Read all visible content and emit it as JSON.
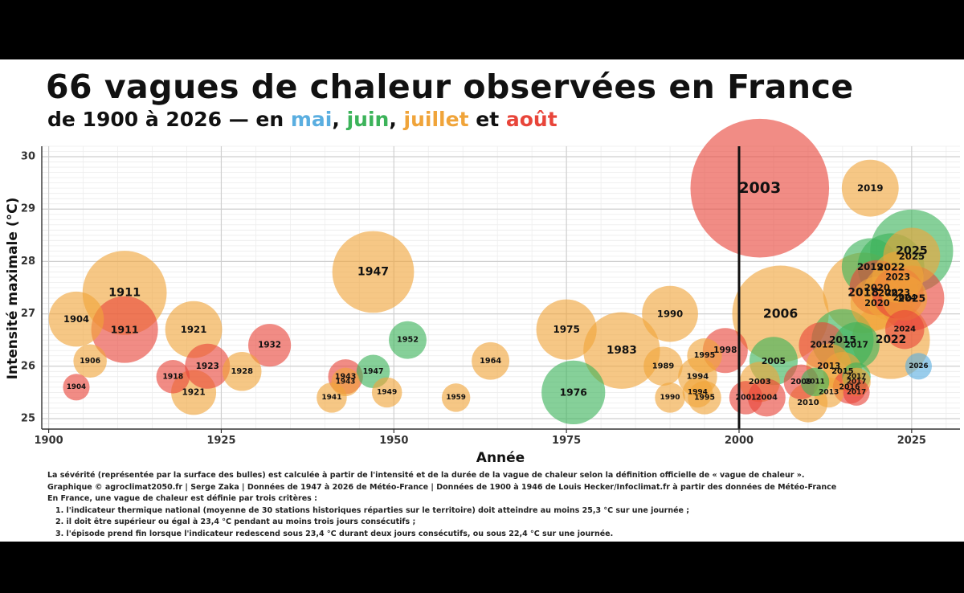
{
  "title": "66 vagues de chaleur observées en France",
  "subtitle": {
    "prefix": "de 1900 à 2026 — en",
    "mai": "mai",
    "sep1": ",",
    "juin": "juin",
    "sep2": ",",
    "juillet": "juillet",
    "et": "et",
    "aout": "août"
  },
  "colors": {
    "mai": "#5aaee0",
    "juin": "#3cb35a",
    "juillet": "#f0a43a",
    "aout": "#e8453a",
    "vline": "#111111"
  },
  "chart_data": {
    "type": "scatter",
    "xlabel": "Année",
    "ylabel": "Intensité maximale (°C)",
    "xlim": [
      1899,
      2032
    ],
    "ylim": [
      24.8,
      30.2
    ],
    "xticks": [
      1900,
      1925,
      1950,
      1975,
      2000,
      2025
    ],
    "yticks": [
      25,
      26,
      27,
      28,
      29,
      30
    ],
    "grid": true,
    "reference_line_x": 2000,
    "size_encoding": "sévérité (surface des bulles)",
    "points": [
      {
        "label": "1904",
        "x": 1904,
        "y": 26.9,
        "month": "juillet",
        "severity": 1.5
      },
      {
        "label": "1904",
        "x": 1904,
        "y": 25.6,
        "month": "aout",
        "severity": 0.35
      },
      {
        "label": "1906",
        "x": 1906,
        "y": 26.1,
        "month": "juillet",
        "severity": 0.55
      },
      {
        "label": "1911",
        "x": 1911,
        "y": 27.4,
        "month": "juillet",
        "severity": 3.5
      },
      {
        "label": "1911",
        "x": 1911,
        "y": 26.7,
        "month": "aout",
        "severity": 2.2
      },
      {
        "label": "1918",
        "x": 1918,
        "y": 25.8,
        "month": "aout",
        "severity": 0.55
      },
      {
        "label": "1921",
        "x": 1921,
        "y": 26.7,
        "month": "juillet",
        "severity": 1.6
      },
      {
        "label": "1921",
        "x": 1921,
        "y": 25.5,
        "month": "juillet",
        "severity": 1.0
      },
      {
        "label": "1923",
        "x": 1923,
        "y": 26.0,
        "month": "aout",
        "severity": 1.0
      },
      {
        "label": "1928",
        "x": 1928,
        "y": 25.9,
        "month": "juillet",
        "severity": 0.75
      },
      {
        "label": "1932",
        "x": 1932,
        "y": 26.4,
        "month": "aout",
        "severity": 0.9
      },
      {
        "label": "1941",
        "x": 1941,
        "y": 25.4,
        "month": "juillet",
        "severity": 0.45
      },
      {
        "label": "1943",
        "x": 1943,
        "y": 25.8,
        "month": "aout",
        "severity": 0.6
      },
      {
        "label": "1943",
        "x": 1943,
        "y": 25.7,
        "month": "juillet",
        "severity": 0.4
      },
      {
        "label": "1947",
        "x": 1947,
        "y": 27.8,
        "month": "juillet",
        "severity": 3.3
      },
      {
        "label": "1947",
        "x": 1947,
        "y": 25.9,
        "month": "juin",
        "severity": 0.55
      },
      {
        "label": "1949",
        "x": 1949,
        "y": 25.5,
        "month": "juillet",
        "severity": 0.45
      },
      {
        "label": "1952",
        "x": 1952,
        "y": 26.5,
        "month": "juin",
        "severity": 0.7
      },
      {
        "label": "1959",
        "x": 1959,
        "y": 25.4,
        "month": "juillet",
        "severity": 0.4
      },
      {
        "label": "1964",
        "x": 1964,
        "y": 26.1,
        "month": "juillet",
        "severity": 0.7
      },
      {
        "label": "1975",
        "x": 1975,
        "y": 26.7,
        "month": "juillet",
        "severity": 1.8
      },
      {
        "label": "1976",
        "x": 1976,
        "y": 25.5,
        "month": "juin",
        "severity": 2.0
      },
      {
        "label": "1983",
        "x": 1983,
        "y": 26.3,
        "month": "juillet",
        "severity": 2.9
      },
      {
        "label": "1989",
        "x": 1989,
        "y": 26.0,
        "month": "juillet",
        "severity": 0.75
      },
      {
        "label": "1990",
        "x": 1990,
        "y": 27.0,
        "month": "juillet",
        "severity": 1.55
      },
      {
        "label": "1990",
        "x": 1990,
        "y": 25.4,
        "month": "juillet",
        "severity": 0.45
      },
      {
        "label": "1994",
        "x": 1994,
        "y": 25.8,
        "month": "juillet",
        "severity": 0.75
      },
      {
        "label": "1994",
        "x": 1994,
        "y": 25.5,
        "month": "juillet",
        "severity": 0.45
      },
      {
        "label": "1995",
        "x": 1995,
        "y": 26.2,
        "month": "juillet",
        "severity": 0.6
      },
      {
        "label": "1995",
        "x": 1995,
        "y": 25.4,
        "month": "juillet",
        "severity": 0.55
      },
      {
        "label": "1998",
        "x": 1998,
        "y": 26.3,
        "month": "aout",
        "severity": 1.0
      },
      {
        "label": "2001",
        "x": 2001,
        "y": 25.4,
        "month": "aout",
        "severity": 0.55
      },
      {
        "label": "2003",
        "x": 2003,
        "y": 29.4,
        "month": "aout",
        "severity": 9.5
      },
      {
        "label": "2003",
        "x": 2003,
        "y": 25.7,
        "month": "juillet",
        "severity": 0.8
      },
      {
        "label": "2004",
        "x": 2004,
        "y": 25.4,
        "month": "aout",
        "severity": 0.7
      },
      {
        "label": "2005",
        "x": 2005,
        "y": 26.1,
        "month": "juin",
        "severity": 1.15
      },
      {
        "label": "2006",
        "x": 2006,
        "y": 27.0,
        "month": "juillet",
        "severity": 4.6
      },
      {
        "label": "2009",
        "x": 2009,
        "y": 25.7,
        "month": "aout",
        "severity": 0.6
      },
      {
        "label": "2010",
        "x": 2010,
        "y": 25.3,
        "month": "juillet",
        "severity": 0.75
      },
      {
        "label": "2011",
        "x": 2011,
        "y": 25.7,
        "month": "juin",
        "severity": 0.4
      },
      {
        "label": "2012",
        "x": 2012,
        "y": 26.4,
        "month": "aout",
        "severity": 1.05
      },
      {
        "label": "2013",
        "x": 2013,
        "y": 26.0,
        "month": "juillet",
        "severity": 1.0
      },
      {
        "label": "2013",
        "x": 2013,
        "y": 25.5,
        "month": "juillet",
        "severity": 0.45
      },
      {
        "label": "2015",
        "x": 2015,
        "y": 26.5,
        "month": "juin",
        "severity": 1.9
      },
      {
        "label": "2015",
        "x": 2015,
        "y": 25.9,
        "month": "juillet",
        "severity": 0.75
      },
      {
        "label": "2016",
        "x": 2016,
        "y": 25.6,
        "month": "aout",
        "severity": 0.55
      },
      {
        "label": "2017",
        "x": 2017,
        "y": 26.4,
        "month": "juin",
        "severity": 1.05
      },
      {
        "label": "2017",
        "x": 2017,
        "y": 25.8,
        "month": "juin",
        "severity": 0.4
      },
      {
        "label": "2017",
        "x": 2017,
        "y": 25.7,
        "month": "juillet",
        "severity": 0.4
      },
      {
        "label": "2017",
        "x": 2017,
        "y": 25.5,
        "month": "aout",
        "severity": 0.35
      },
      {
        "label": "2018",
        "x": 2018,
        "y": 27.4,
        "month": "juillet",
        "severity": 3.2
      },
      {
        "label": "2019",
        "x": 2019,
        "y": 29.4,
        "month": "juillet",
        "severity": 1.6
      },
      {
        "label": "2019",
        "x": 2019,
        "y": 27.9,
        "month": "juin",
        "severity": 1.6
      },
      {
        "label": "2020",
        "x": 2020,
        "y": 27.5,
        "month": "aout",
        "severity": 1.5
      },
      {
        "label": "2020",
        "x": 2020,
        "y": 27.2,
        "month": "juillet",
        "severity": 1.4
      },
      {
        "label": "2022",
        "x": 2022,
        "y": 27.9,
        "month": "juin",
        "severity": 2.2
      },
      {
        "label": "2022",
        "x": 2022,
        "y": 27.4,
        "month": "juillet",
        "severity": 1.5
      },
      {
        "label": "2022",
        "x": 2022,
        "y": 26.5,
        "month": "juillet",
        "severity": 3.0
      },
      {
        "label": "2023",
        "x": 2023,
        "y": 27.4,
        "month": "aout",
        "severity": 1.3
      },
      {
        "label": "2023",
        "x": 2023,
        "y": 27.7,
        "month": "juillet",
        "severity": 1.3
      },
      {
        "label": "2024",
        "x": 2024,
        "y": 26.7,
        "month": "aout",
        "severity": 0.75
      },
      {
        "label": "2024",
        "x": 2024,
        "y": 27.3,
        "month": "juillet",
        "severity": 1.0
      },
      {
        "label": "2025",
        "x": 2025,
        "y": 28.2,
        "month": "juin",
        "severity": 3.4
      },
      {
        "label": "2025",
        "x": 2025,
        "y": 27.3,
        "month": "aout",
        "severity": 2.1
      },
      {
        "label": "2025",
        "x": 2025,
        "y": 28.1,
        "month": "juillet",
        "severity": 1.6
      },
      {
        "label": "2026",
        "x": 2026,
        "y": 26.0,
        "month": "mai",
        "severity": 0.35
      }
    ],
    "visible_labels": [
      "1904",
      "1904",
      "1906",
      "1911",
      "1911",
      "1918",
      "1921",
      "1921",
      "1923",
      "1928",
      "1932",
      "1941",
      "1943",
      "1943",
      "1947",
      "1947",
      "1949",
      "1952",
      "1959",
      "1964",
      "1975",
      "1976",
      "1983",
      "1989",
      "1990",
      "1990",
      "1994",
      "1994",
      "1995",
      "1995",
      "1998",
      "2001",
      "2003",
      "2003",
      "2004",
      "2005",
      "2006",
      "2009",
      "2010",
      "2011",
      "2012",
      "2013",
      "2013",
      "2015",
      "2015",
      "2016",
      "2017",
      "2017",
      "2017",
      "2017",
      "2018",
      "2019",
      "2019",
      "2020",
      "2020",
      "2022",
      "2022",
      "2022",
      "2023",
      "2023",
      "2024",
      "2024",
      "2025",
      "2025",
      "2025",
      "2026"
    ]
  },
  "notes": {
    "line1": "La sévérité (représentée par la surface des bulles) est calculée à partir de l'intensité et de la durée de la vague de chaleur selon la définition officielle de « vague de chaleur ».",
    "line2": "Graphique © agroclimat2050.fr | Serge Zaka | Données de 1947 à 2026 de Météo-France | Données de 1900 à 1946 de Louis Hecker/Infoclimat.fr à partir des données de Météo-France",
    "line3": "En France, une vague de chaleur est définie par trois critères :",
    "line4": "1. l'indicateur thermique national (moyenne de 30 stations historiques réparties sur le territoire) doit atteindre au moins 25,3 °C sur une journée ;",
    "line5": "2. il doit être supérieur ou égal à 23,4 °C pendant au moins trois jours consécutifs ;",
    "line6": "3. l'épisode prend fin lorsque l'indicateur redescend sous 23,4 °C durant deux jours consécutifs, ou sous 22,4 °C sur une journée."
  }
}
